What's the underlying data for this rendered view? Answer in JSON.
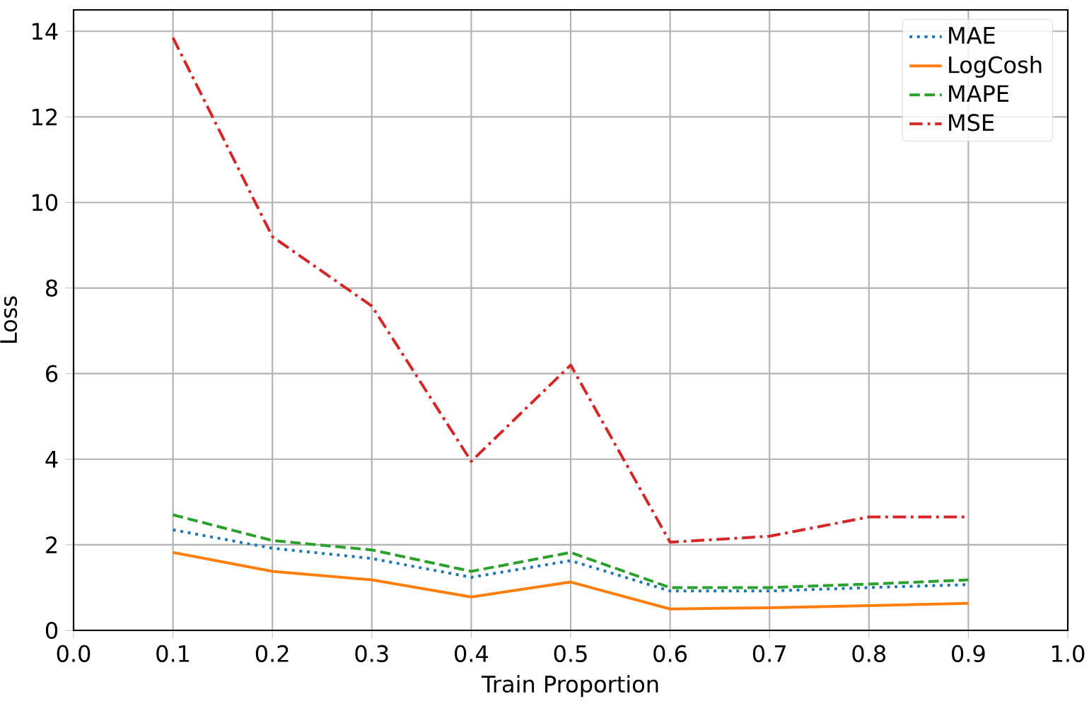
{
  "chart_data": {
    "type": "line",
    "xlabel": "Train Proportion",
    "ylabel": "Loss",
    "x": [
      0.1,
      0.2,
      0.3,
      0.4,
      0.5,
      0.6,
      0.7,
      0.8,
      0.9
    ],
    "series": [
      {
        "name": "MAE",
        "color": "#1f77b4",
        "line_style": "dotted",
        "values": [
          2.35,
          1.92,
          1.68,
          1.24,
          1.63,
          0.92,
          0.92,
          1.0,
          1.07
        ]
      },
      {
        "name": "LogCosh",
        "color": "#ff7f0e",
        "line_style": "solid",
        "values": [
          1.82,
          1.38,
          1.18,
          0.78,
          1.13,
          0.5,
          0.53,
          0.58,
          0.63
        ]
      },
      {
        "name": "MAPE",
        "color": "#2ca02c",
        "line_style": "dashed",
        "values": [
          2.7,
          2.1,
          1.88,
          1.38,
          1.82,
          1.0,
          1.0,
          1.08,
          1.18
        ]
      },
      {
        "name": "MSE",
        "color": "#d62728",
        "line_style": "dashdot",
        "values": [
          13.85,
          9.2,
          7.58,
          3.95,
          6.2,
          2.06,
          2.2,
          2.65,
          2.65
        ]
      }
    ],
    "xlim": [
      0.0,
      1.0
    ],
    "xticks": [
      {
        "value": 0.0,
        "label": "0.0"
      },
      {
        "value": 0.1,
        "label": "0.1"
      },
      {
        "value": 0.2,
        "label": "0.2"
      },
      {
        "value": 0.3,
        "label": "0.3"
      },
      {
        "value": 0.4,
        "label": "0.4"
      },
      {
        "value": 0.5,
        "label": "0.5"
      },
      {
        "value": 0.6,
        "label": "0.6"
      },
      {
        "value": 0.7,
        "label": "0.7"
      },
      {
        "value": 0.8,
        "label": "0.8"
      },
      {
        "value": 0.9,
        "label": "0.9"
      },
      {
        "value": 1.0,
        "label": "1.0"
      }
    ],
    "ylim": [
      0,
      14.5
    ],
    "yticks": [
      0,
      2,
      4,
      6,
      8,
      10,
      12,
      14
    ],
    "grid": true,
    "legend": "top right",
    "marker": "none"
  }
}
